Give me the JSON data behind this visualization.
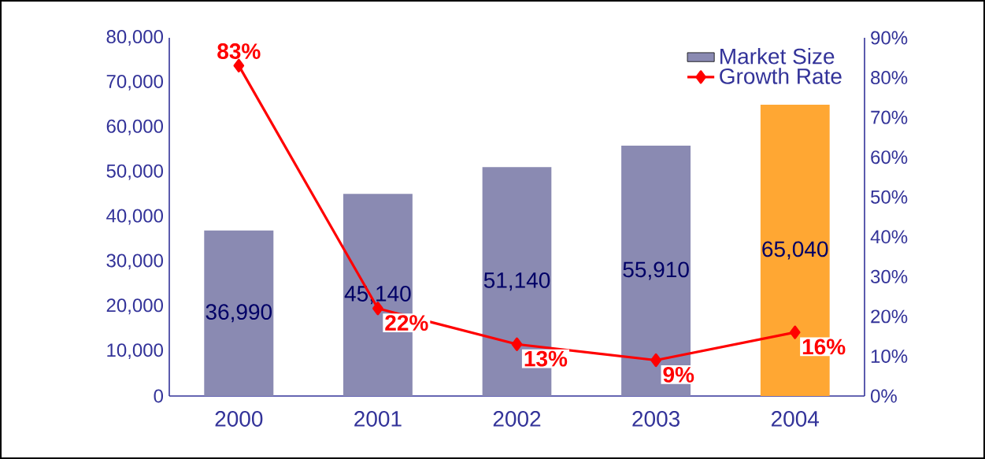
{
  "chart_data": {
    "type": "bar",
    "categories": [
      "2000",
      "2001",
      "2002",
      "2003",
      "2004"
    ],
    "series": [
      {
        "name": "Market Size",
        "color": "#8a8ab2",
        "colors": [
          "#8a8ab2",
          "#8a8ab2",
          "#8a8ab2",
          "#8a8ab2",
          "#ffa733"
        ],
        "values": [
          36990,
          45140,
          51140,
          55910,
          65040
        ],
        "value_labels": [
          "36,990",
          "45,140",
          "51,140",
          "55,910",
          "65,040"
        ]
      },
      {
        "name": "Growth Rate",
        "type": "line",
        "axis": "y2",
        "color": "#ff0000",
        "values": [
          83,
          22,
          13,
          9,
          16
        ],
        "value_labels": [
          "83%",
          "22%",
          "13%",
          "9%",
          "16%"
        ]
      }
    ],
    "ylim": [
      0,
      80000
    ],
    "yticks": [
      {
        "value": 0,
        "label": "0"
      },
      {
        "value": 10000,
        "label": "10,000"
      },
      {
        "value": 20000,
        "label": "20,000"
      },
      {
        "value": 30000,
        "label": "30,000"
      },
      {
        "value": 40000,
        "label": "40,000"
      },
      {
        "value": 50000,
        "label": "50,000"
      },
      {
        "value": 60000,
        "label": "60,000"
      },
      {
        "value": 70000,
        "label": "70,000"
      },
      {
        "value": 80000,
        "label": "80,000"
      }
    ],
    "y2lim": [
      0,
      90
    ],
    "y2ticks": [
      {
        "value": 0,
        "label": "0%"
      },
      {
        "value": 10,
        "label": "10%"
      },
      {
        "value": 20,
        "label": "20%"
      },
      {
        "value": 30,
        "label": "30%"
      },
      {
        "value": 40,
        "label": "40%"
      },
      {
        "value": 50,
        "label": "50%"
      },
      {
        "value": 60,
        "label": "60%"
      },
      {
        "value": 70,
        "label": "70%"
      },
      {
        "value": 80,
        "label": "80%"
      },
      {
        "value": 90,
        "label": "90%"
      }
    ],
    "legend": "top right",
    "grid": false,
    "marker": "diamond",
    "line_style": "solid"
  }
}
